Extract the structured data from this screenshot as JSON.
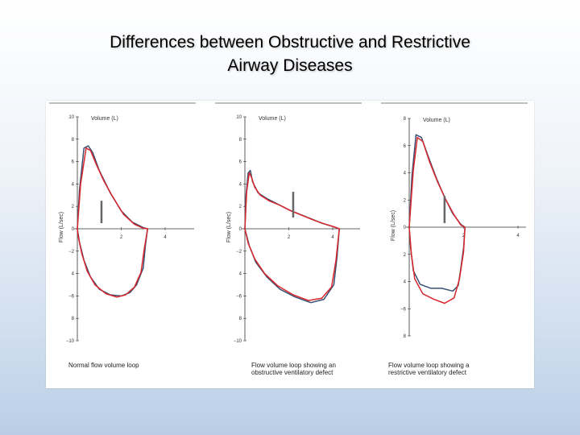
{
  "slide": {
    "title_line1": "Differences between Obstructive and Restrictive",
    "title_line2": "Airway Diseases"
  },
  "colors": {
    "series_blue": "#3a4f72",
    "series_red": "#d9262c",
    "axis": "#333333",
    "bar": "#666666"
  },
  "chart_data": [
    {
      "type": "line",
      "caption": [
        "Normal flow volume loop"
      ],
      "xlabel": "Volume (L)",
      "ylabel": "Flow (L/sec)",
      "xlim": [
        -1,
        4.5
      ],
      "ylim": [
        -10,
        10
      ],
      "x_ticks": [
        "2",
        "4"
      ],
      "x_tick_values": [
        2,
        4
      ],
      "y_ticks": [
        "10",
        "8",
        "6",
        "4",
        "2",
        "0",
        "−2",
        "4",
        "−6",
        "8",
        "−10"
      ],
      "y_tick_values": [
        10,
        8,
        6,
        4,
        2,
        0,
        -2,
        -4,
        -6,
        -8,
        -10
      ],
      "marker": {
        "x": 1.1,
        "y0": 0.5,
        "y1": 2.5
      },
      "series": [
        {
          "color": "blue",
          "points": [
            [
              0,
              0
            ],
            [
              0.1,
              3.5
            ],
            [
              0.3,
              7.2
            ],
            [
              0.5,
              7.4
            ],
            [
              0.7,
              6.8
            ],
            [
              1.0,
              5.2
            ],
            [
              1.5,
              3.2
            ],
            [
              2.0,
              1.6
            ],
            [
              2.5,
              0.6
            ],
            [
              3.0,
              0.1
            ],
            [
              3.2,
              0
            ],
            [
              3.1,
              -1.5
            ],
            [
              3.0,
              -3.5
            ],
            [
              2.7,
              -5.0
            ],
            [
              2.4,
              -5.7
            ],
            [
              2.0,
              -6.0
            ],
            [
              1.5,
              -5.9
            ],
            [
              1.0,
              -5.4
            ],
            [
              0.6,
              -4.3
            ],
            [
              0.3,
              -2.8
            ],
            [
              0.1,
              -1.2
            ],
            [
              0,
              0
            ]
          ]
        },
        {
          "color": "red",
          "points": [
            [
              0,
              0
            ],
            [
              0.15,
              4.0
            ],
            [
              0.4,
              7.2
            ],
            [
              0.6,
              7.0
            ],
            [
              0.85,
              5.8
            ],
            [
              1.2,
              4.3
            ],
            [
              1.6,
              2.9
            ],
            [
              2.1,
              1.3
            ],
            [
              2.6,
              0.4
            ],
            [
              3.0,
              0.05
            ],
            [
              3.2,
              0
            ],
            [
              3.05,
              -1.8
            ],
            [
              2.9,
              -3.9
            ],
            [
              2.6,
              -5.2
            ],
            [
              2.2,
              -5.9
            ],
            [
              1.8,
              -6.1
            ],
            [
              1.3,
              -5.8
            ],
            [
              0.8,
              -5.0
            ],
            [
              0.45,
              -3.8
            ],
            [
              0.2,
              -2.2
            ],
            [
              0.05,
              -0.8
            ],
            [
              0,
              0
            ]
          ]
        }
      ]
    },
    {
      "type": "line",
      "caption": [
        "Flow volume loop showing an",
        "obstructive ventilatory defect"
      ],
      "xlabel": "Volume (L)",
      "ylabel": "Flow (L/sec)",
      "xlim": [
        -1,
        4.5
      ],
      "ylim": [
        -10,
        10
      ],
      "x_ticks": [
        "2",
        "4"
      ],
      "x_tick_values": [
        2,
        4
      ],
      "y_ticks": [
        "10",
        "8",
        "6",
        "4",
        "2",
        "0",
        "−2",
        "4",
        "−6",
        "8",
        "−10"
      ],
      "y_tick_values": [
        10,
        8,
        6,
        4,
        2,
        0,
        -2,
        -4,
        -6,
        -8,
        -10
      ],
      "marker": {
        "x": 2.2,
        "y0": 1.0,
        "y1": 3.3
      },
      "series": [
        {
          "color": "blue",
          "points": [
            [
              0,
              0
            ],
            [
              0.05,
              3.0
            ],
            [
              0.15,
              5.0
            ],
            [
              0.25,
              5.2
            ],
            [
              0.35,
              4.2
            ],
            [
              0.6,
              3.2
            ],
            [
              1.0,
              2.7
            ],
            [
              1.5,
              2.2
            ],
            [
              2.0,
              1.7
            ],
            [
              2.5,
              1.3
            ],
            [
              3.0,
              0.9
            ],
            [
              3.5,
              0.5
            ],
            [
              4.0,
              0.2
            ],
            [
              4.3,
              0
            ],
            [
              4.2,
              -2.5
            ],
            [
              4.05,
              -5.0
            ],
            [
              3.6,
              -6.3
            ],
            [
              3.0,
              -6.6
            ],
            [
              2.3,
              -6.1
            ],
            [
              1.6,
              -5.4
            ],
            [
              1.0,
              -4.3
            ],
            [
              0.5,
              -3.0
            ],
            [
              0.2,
              -1.5
            ],
            [
              0,
              0
            ]
          ]
        },
        {
          "color": "red",
          "points": [
            [
              0,
              0
            ],
            [
              0.08,
              3.3
            ],
            [
              0.2,
              5.0
            ],
            [
              0.3,
              4.6
            ],
            [
              0.45,
              3.7
            ],
            [
              0.7,
              3.0
            ],
            [
              1.1,
              2.5
            ],
            [
              1.6,
              2.1
            ],
            [
              2.1,
              1.6
            ],
            [
              2.6,
              1.2
            ],
            [
              3.1,
              0.8
            ],
            [
              3.6,
              0.45
            ],
            [
              4.1,
              0.15
            ],
            [
              4.3,
              0
            ],
            [
              4.15,
              -2.8
            ],
            [
              3.95,
              -5.2
            ],
            [
              3.5,
              -6.2
            ],
            [
              2.9,
              -6.4
            ],
            [
              2.2,
              -5.9
            ],
            [
              1.5,
              -5.1
            ],
            [
              0.9,
              -4.0
            ],
            [
              0.45,
              -2.7
            ],
            [
              0.15,
              -1.3
            ],
            [
              0,
              0
            ]
          ]
        }
      ]
    },
    {
      "type": "line",
      "caption": [
        "Flow volume loop showing a",
        "restrictive ventilatory defect"
      ],
      "xlabel": "Volume (L)",
      "ylabel": "Flow (L/sec)",
      "xlim": [
        -1,
        4.5
      ],
      "ylim": [
        -8,
        8
      ],
      "x_ticks": [
        "2",
        "4"
      ],
      "x_tick_values": [
        2,
        4
      ],
      "y_ticks": [
        "8",
        "6",
        "4",
        "2",
        "0",
        "2",
        "4",
        "−6",
        "8"
      ],
      "y_tick_values": [
        8,
        6,
        4,
        2,
        0,
        -2,
        -4,
        -6,
        -8
      ],
      "marker": {
        "x": 1.3,
        "y0": 0.3,
        "y1": 2.3
      },
      "series": [
        {
          "color": "blue",
          "points": [
            [
              0,
              0
            ],
            [
              0.1,
              3.8
            ],
            [
              0.25,
              6.8
            ],
            [
              0.45,
              6.6
            ],
            [
              0.7,
              5.2
            ],
            [
              1.0,
              3.6
            ],
            [
              1.3,
              2.2
            ],
            [
              1.6,
              1.0
            ],
            [
              1.9,
              0.2
            ],
            [
              2.05,
              0
            ],
            [
              2.0,
              -1.5
            ],
            [
              1.9,
              -3.0
            ],
            [
              1.8,
              -4.3
            ],
            [
              1.6,
              -4.7
            ],
            [
              1.2,
              -4.5
            ],
            [
              0.8,
              -4.5
            ],
            [
              0.4,
              -4.2
            ],
            [
              0.15,
              -3.2
            ],
            [
              0.05,
              -1.5
            ],
            [
              0,
              0
            ]
          ]
        },
        {
          "color": "red",
          "points": [
            [
              0,
              0
            ],
            [
              0.15,
              4.2
            ],
            [
              0.3,
              6.6
            ],
            [
              0.5,
              6.3
            ],
            [
              0.75,
              4.8
            ],
            [
              1.05,
              3.3
            ],
            [
              1.35,
              2.0
            ],
            [
              1.65,
              0.9
            ],
            [
              1.9,
              0.15
            ],
            [
              2.05,
              0
            ],
            [
              2.0,
              -1.8
            ],
            [
              1.85,
              -3.8
            ],
            [
              1.65,
              -5.2
            ],
            [
              1.3,
              -5.6
            ],
            [
              0.9,
              -5.3
            ],
            [
              0.5,
              -4.9
            ],
            [
              0.2,
              -3.8
            ],
            [
              0.08,
              -2.0
            ],
            [
              0,
              0
            ]
          ]
        }
      ]
    }
  ]
}
